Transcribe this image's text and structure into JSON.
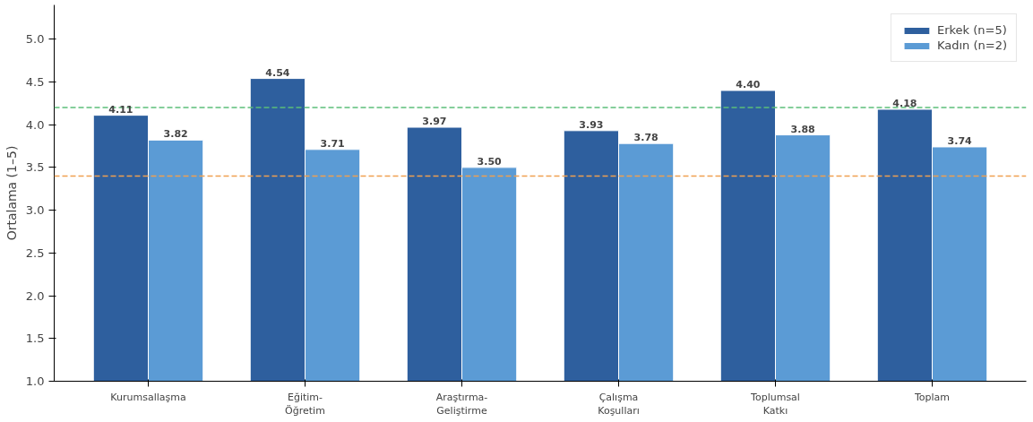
{
  "chart_data": {
    "type": "bar",
    "ylabel": "Ortalama (1–5)",
    "categories": [
      "Kurumsallaşma",
      "Eğitim-\nÖğretim",
      "Araştırma-\nGeliştirme",
      "Çalışma\nKoşulları",
      "Toplumsal\nKatkı",
      "Toplam"
    ],
    "series": [
      {
        "name": "Erkek (n=5)",
        "color": "#2e5f9e",
        "values": [
          4.11,
          4.54,
          3.97,
          3.93,
          4.4,
          4.18
        ],
        "value_labels": [
          "4.11",
          "4.54",
          "3.97",
          "3.93",
          "4.40",
          "4.18"
        ]
      },
      {
        "name": "Kadın (n=2)",
        "color": "#5b9bd5",
        "values": [
          3.82,
          3.71,
          3.5,
          3.78,
          3.88,
          3.74
        ],
        "value_labels": [
          "3.82",
          "3.71",
          "3.50",
          "3.78",
          "3.88",
          "3.74"
        ]
      }
    ],
    "ylim": [
      1.0,
      5.4
    ],
    "yticks": [
      {
        "value": 1.0,
        "label": "1.0"
      },
      {
        "value": 1.5,
        "label": "1.5"
      },
      {
        "value": 2.0,
        "label": "2.0"
      },
      {
        "value": 2.5,
        "label": "2.5"
      },
      {
        "value": 3.0,
        "label": "3.0"
      },
      {
        "value": 3.5,
        "label": "3.5"
      },
      {
        "value": 4.0,
        "label": "4.0"
      },
      {
        "value": 4.5,
        "label": "4.5"
      },
      {
        "value": 5.0,
        "label": "5.0"
      }
    ],
    "ref_lines": [
      {
        "axis": "y",
        "value": 4.2,
        "color": "#5cbf7a",
        "line_style": "dashed"
      },
      {
        "axis": "y",
        "value": 3.4,
        "color": "#f0a050",
        "line_style": "dashed"
      }
    ],
    "grid": false,
    "legend": "top right"
  }
}
